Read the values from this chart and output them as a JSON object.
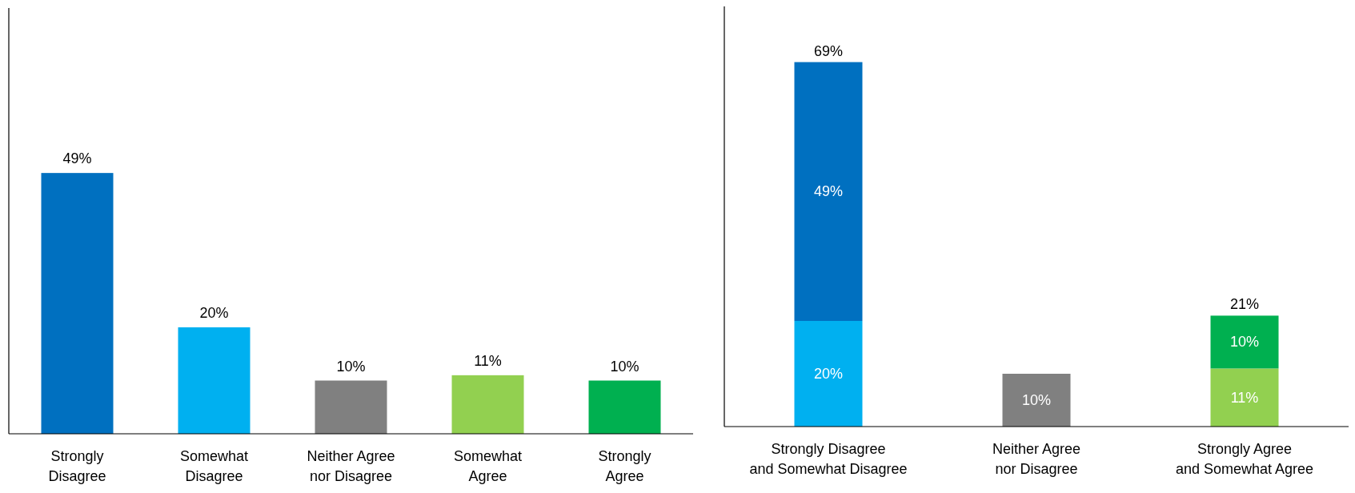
{
  "chart_data": [
    {
      "type": "bar",
      "categories": [
        "Strongly Disagree",
        "Somewhat Disagree",
        "Neither Agree nor Disagree",
        "Somewhat Agree",
        "Strongly Agree"
      ],
      "values": [
        49,
        20,
        10,
        11,
        10
      ],
      "colors": [
        "#0070c0",
        "#00b0f0",
        "#808080",
        "#92d050",
        "#00b050"
      ],
      "value_labels": [
        "49%",
        "20%",
        "10%",
        "11%",
        "10%"
      ],
      "ylim": [
        0,
        80
      ],
      "tick_labels": "x"
    },
    {
      "type": "bar",
      "stacked": true,
      "categories": [
        "Strongly Disagree and Somewhat Disagree",
        "Neither Agree nor Disagree",
        "Strongly Agree and Somewhat Agree"
      ],
      "series": [
        {
          "colors": [
            "#00b0f0",
            "#808080",
            "#92d050"
          ],
          "values": [
            20,
            10,
            11
          ],
          "value_labels": [
            "20%",
            "10%",
            "11%"
          ]
        },
        {
          "colors": [
            "#0070c0",
            null,
            "#00b050"
          ],
          "values": [
            49,
            null,
            10
          ],
          "value_labels": [
            "49%",
            null,
            "10%"
          ]
        }
      ],
      "totals": [
        "69%",
        null,
        "21%"
      ],
      "ylim": [
        0,
        80
      ],
      "tick_labels": "x"
    }
  ]
}
